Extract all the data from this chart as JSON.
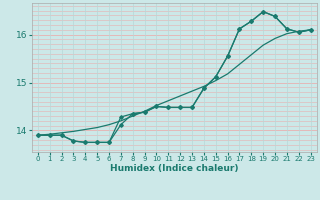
{
  "xlabel": "Humidex (Indice chaleur)",
  "xlim": [
    -0.5,
    23.5
  ],
  "ylim": [
    13.55,
    16.65
  ],
  "bg_color": "#cce8e8",
  "grid_color_h": "#e8b0b0",
  "grid_color_v": "#b8d8d8",
  "line_color": "#1a7a6e",
  "x_ticks": [
    0,
    1,
    2,
    3,
    4,
    5,
    6,
    7,
    8,
    9,
    10,
    11,
    12,
    13,
    14,
    15,
    16,
    17,
    18,
    19,
    20,
    21,
    22,
    23
  ],
  "y_ticks": [
    14,
    15,
    16
  ],
  "line1_y": [
    13.9,
    13.9,
    13.9,
    13.78,
    13.75,
    13.75,
    13.75,
    14.28,
    14.35,
    14.38,
    14.5,
    14.48,
    14.48,
    14.48,
    14.88,
    15.12,
    15.55,
    16.12,
    16.28,
    16.48,
    16.38,
    16.12,
    16.05,
    16.1
  ],
  "line2_y": [
    13.9,
    13.9,
    13.9,
    13.78,
    13.75,
    13.75,
    13.75,
    14.12,
    14.35,
    14.38,
    14.5,
    14.48,
    14.48,
    14.48,
    14.88,
    15.12,
    15.55,
    16.12,
    16.28,
    16.48,
    16.38,
    16.12,
    16.05,
    16.1
  ],
  "line3_y": [
    13.9,
    13.92,
    13.95,
    13.98,
    14.02,
    14.06,
    14.12,
    14.2,
    14.3,
    14.4,
    14.52,
    14.62,
    14.72,
    14.82,
    14.92,
    15.04,
    15.18,
    15.38,
    15.58,
    15.78,
    15.92,
    16.02,
    16.07,
    16.1
  ]
}
